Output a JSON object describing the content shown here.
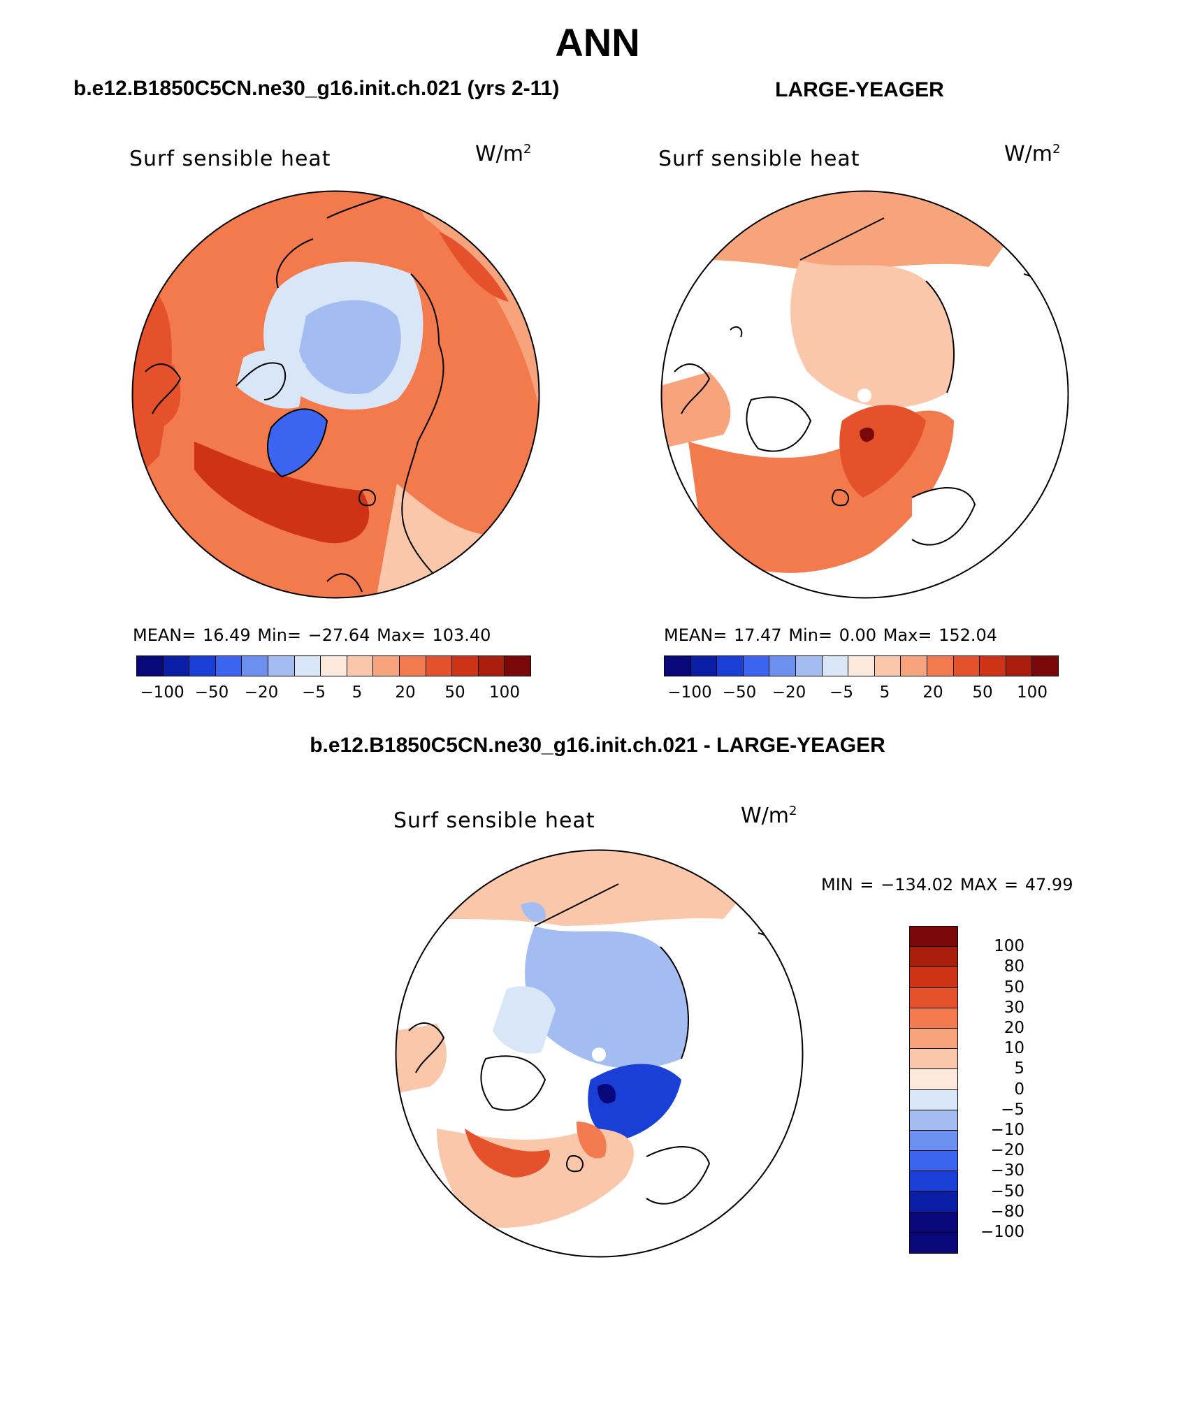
{
  "title": "ANN",
  "panel_left": {
    "header": "b.e12.B1850C5CN.ne30_g16.init.ch.021 (yrs 2-11)",
    "variable": "Surf  sensible  heat",
    "units": "W/m",
    "units_exp": "2",
    "stats": "MEAN=   16.49   Min= −27.64   Max= 103.40",
    "colorbar_ticks": [
      "−100",
      "−50",
      "−20",
      "−5",
      "5",
      "20",
      "50",
      "100"
    ]
  },
  "panel_right": {
    "header": "LARGE-YEAGER",
    "variable": "Surf  sensible  heat",
    "units": "W/m",
    "units_exp": "2",
    "stats": "MEAN=   17.47   Min=     0.00   Max= 152.04",
    "colorbar_ticks": [
      "−100",
      "−50",
      "−20",
      "−5",
      "5",
      "20",
      "50",
      "100"
    ]
  },
  "panel_diff": {
    "header": "b.e12.B1850C5CN.ne30_g16.init.ch.021 - LARGE-YEAGER",
    "variable": "Surf  sensible  heat",
    "units": "W/m",
    "units_exp": "2",
    "stats": "MIN = −134.02  MAX =    47.99",
    "colorbar_labels": [
      "100",
      "80",
      "50",
      "30",
      "20",
      "10",
      "5",
      "0",
      "−5",
      "−10",
      "−20",
      "−30",
      "−50",
      "−80",
      "−100"
    ]
  },
  "colors": {
    "scale": [
      "#08087a",
      "#0b1fa6",
      "#1a3fd6",
      "#3b64f0",
      "#6b90f0",
      "#a3bdf3",
      "#d8e6f8",
      "#fde9dc",
      "#fbc7aa",
      "#f7a47c",
      "#f27a4c",
      "#e5512a",
      "#cf3316",
      "#a81e0a",
      "#7a0808"
    ],
    "land_outline": "#000000"
  }
}
